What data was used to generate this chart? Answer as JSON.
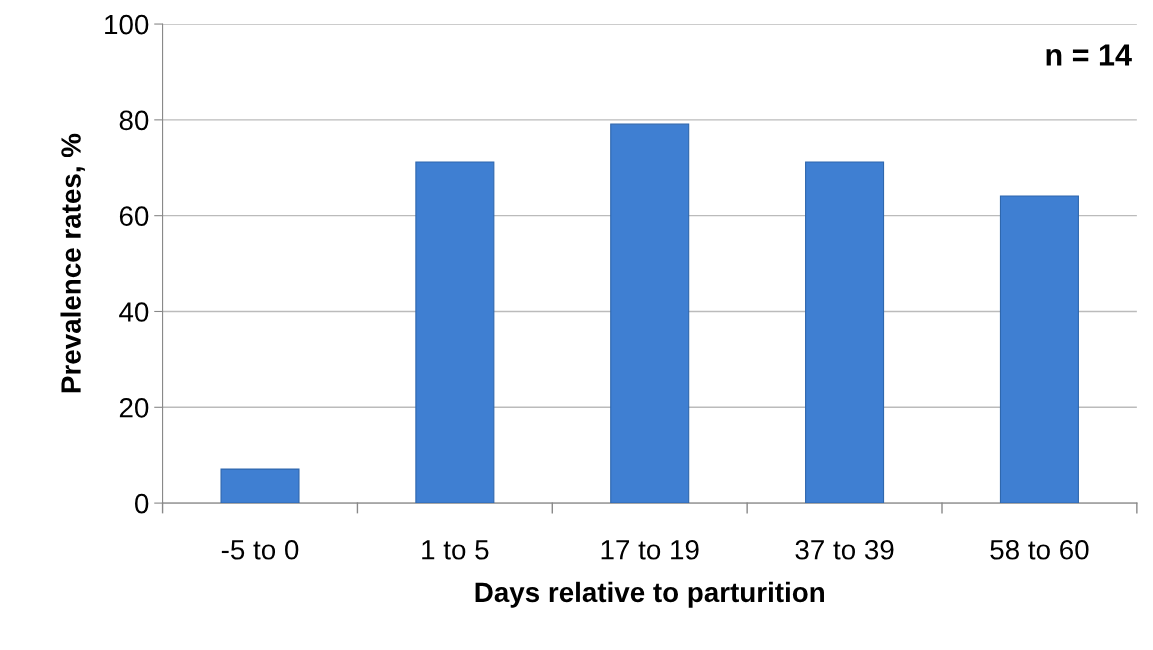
{
  "chart_data": {
    "type": "bar",
    "xlabel": "Days relative to parturition",
    "ylabel": "Prevalence rates, %",
    "categories": [
      "-5 to 0",
      "1 to 5",
      "17 to 19",
      "37 to 39",
      "58 to 60"
    ],
    "values": [
      7.1,
      71.2,
      79.1,
      71.2,
      64.1
    ],
    "color": "#3f7fd2",
    "ylim": [
      0,
      100
    ],
    "yticks": [
      0,
      20,
      40,
      60,
      80,
      100
    ],
    "grid": "y",
    "annotations": [
      "n = 14"
    ]
  }
}
